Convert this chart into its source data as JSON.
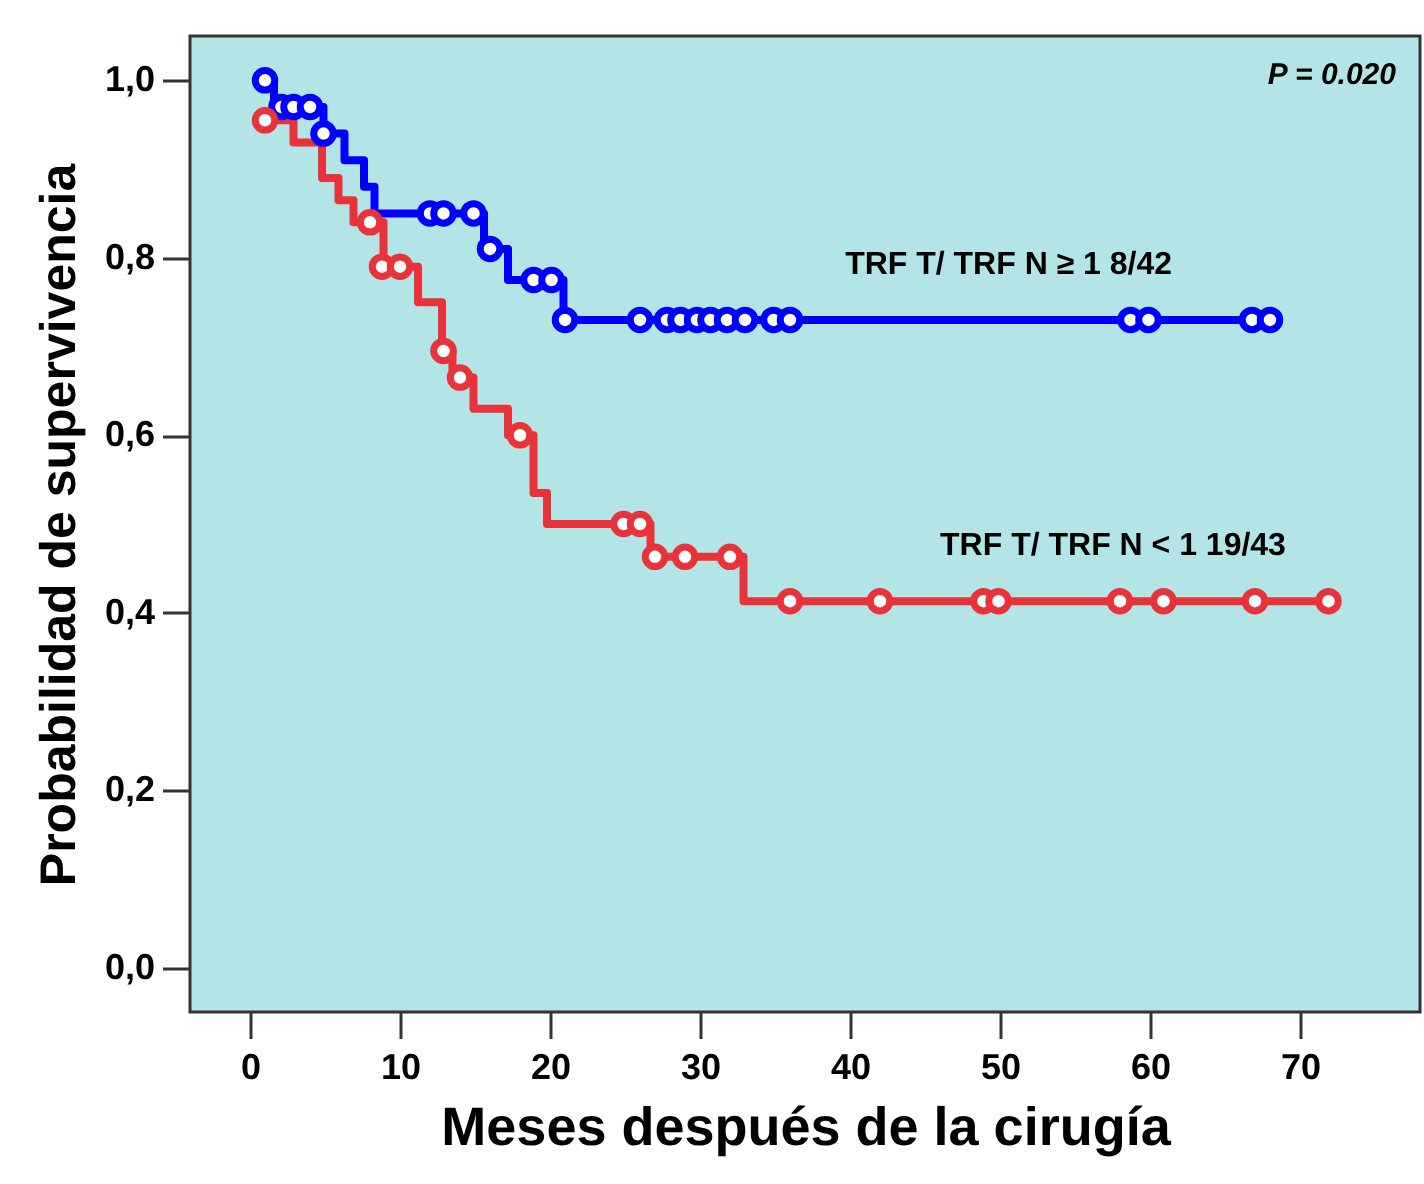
{
  "chart_data": {
    "type": "step",
    "xlabel": "Meses después de la cirugía",
    "ylabel": "Probabilidad de supervivencia",
    "xlim": [
      -4,
      78
    ],
    "ylim": [
      -0.05,
      1.05
    ],
    "xticks": [
      0,
      10,
      20,
      30,
      40,
      50,
      60,
      70
    ],
    "yticks": [
      {
        "value": 0,
        "label": "0,0"
      },
      {
        "value": 0.2,
        "label": "0,2"
      },
      {
        "value": 0.4,
        "label": "0,4"
      },
      {
        "value": 0.6,
        "label": "0,6"
      },
      {
        "value": 0.8,
        "label": "0,8"
      },
      {
        "value": 1,
        "label": "1,0"
      }
    ],
    "grid": false,
    "line_style": "solid",
    "series": [
      {
        "name": "TRF T/ TRF N ≥ 1   8/42",
        "color": "#0000ff",
        "x": [
          1,
          1.6,
          4.9,
          6.3,
          7.6,
          8.3,
          15.6,
          17.2,
          20.9,
          68
        ],
        "values": [
          1.0,
          0.97,
          0.94,
          0.91,
          0.88,
          0.85,
          0.81,
          0.775,
          0.73,
          0.73
        ]
      },
      {
        "name": "TRF T/ TRF N < 1   19/43",
        "color": "#e8333a",
        "x": [
          1,
          2.9,
          4.8,
          5.9,
          6.9,
          8.9,
          11.2,
          12.8,
          13.5,
          14.9,
          17.2,
          18.9,
          19.8,
          26.7,
          32.9,
          72
        ],
        "values": [
          0.955,
          0.93,
          0.89,
          0.865,
          0.84,
          0.79,
          0.75,
          0.695,
          0.665,
          0.63,
          0.6,
          0.535,
          0.5,
          0.463,
          0.413,
          0.413
        ]
      },
      {
        "type": "scatter",
        "marker": "circle",
        "color": "#0000ff",
        "x": [
          1,
          2.1,
          2.9,
          4.0,
          4.9,
          12.0,
          12.9,
          14.9,
          16.0,
          18.9,
          20.1,
          21,
          26,
          27.8,
          28.7,
          29.8,
          30.7,
          31.8,
          33,
          34.9,
          36,
          58.7,
          59.9,
          66.8,
          68
        ],
        "values": [
          1.0,
          0.97,
          0.97,
          0.97,
          0.94,
          0.85,
          0.85,
          0.85,
          0.81,
          0.775,
          0.775,
          0.73,
          0.73,
          0.73,
          0.73,
          0.73,
          0.73,
          0.73,
          0.73,
          0.73,
          0.73,
          0.73,
          0.73,
          0.73,
          0.73
        ]
      },
      {
        "type": "scatter",
        "marker": "circle",
        "color": "#e8333a",
        "x": [
          1,
          8,
          8.8,
          10,
          12.9,
          14,
          18,
          24.9,
          26,
          27,
          29,
          32,
          36,
          42,
          48.9,
          49.9,
          58,
          60.9,
          67,
          71.9
        ],
        "values": [
          0.955,
          0.84,
          0.79,
          0.79,
          0.695,
          0.665,
          0.6,
          0.5,
          0.5,
          0.463,
          0.463,
          0.463,
          0.413,
          0.413,
          0.413,
          0.413,
          0.413,
          0.413,
          0.413,
          0.413
        ]
      }
    ],
    "annotations": [
      "P = 0.020"
    ]
  }
}
